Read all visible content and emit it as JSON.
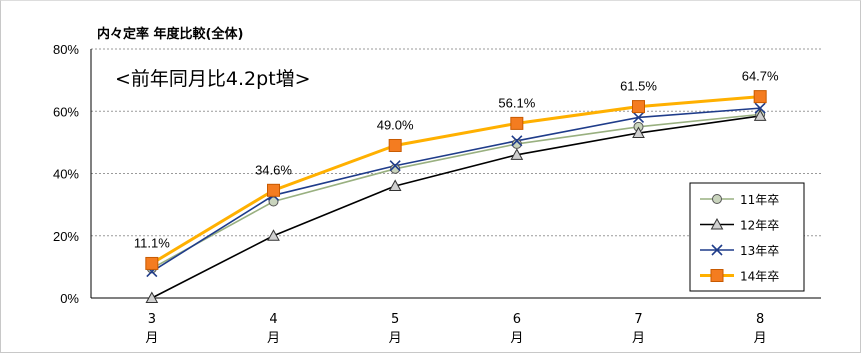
{
  "chart_data": {
    "type": "line",
    "title": "内々定率 年度比較(全体)",
    "subtitle": "<前年同月比4.2pt増>",
    "categories": [
      "3\n月",
      "4\n月",
      "5\n月",
      "6\n月",
      "7\n月",
      "8\n月"
    ],
    "ylim": [
      0,
      80
    ],
    "yticks": [
      "0%",
      "20%",
      "40%",
      "60%",
      "80%"
    ],
    "grid": true,
    "legend_position": "right-bottom",
    "series": [
      {
        "name": "11年卒",
        "values": [
          9.5,
          31,
          41.5,
          49.5,
          55,
          59
        ],
        "color": "#99b080",
        "marker": "circle"
      },
      {
        "name": "12年卒",
        "values": [
          0,
          20,
          36,
          46,
          53,
          58.5
        ],
        "color": "#000000",
        "marker": "triangle"
      },
      {
        "name": "13年卒",
        "values": [
          8.5,
          33,
          42.5,
          50.5,
          58,
          61
        ],
        "color": "#1f3c8a",
        "marker": "x"
      },
      {
        "name": "14年卒",
        "values": [
          11.1,
          34.6,
          49.0,
          56.1,
          61.5,
          64.7
        ],
        "color": "#ffb000",
        "marker": "square"
      }
    ],
    "data_labels": [
      "11.1%",
      "34.6%",
      "49.0%",
      "56.1%",
      "61.5%",
      "64.7%"
    ]
  }
}
